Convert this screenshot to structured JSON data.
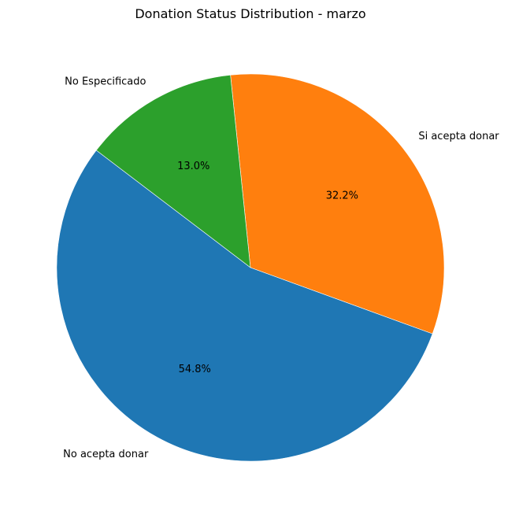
{
  "chart_data": {
    "type": "pie",
    "title": "Donation Status Distribution - marzo",
    "slices": [
      {
        "label": "Si acepta donar",
        "value": 32.2,
        "pct_label": "32.2%",
        "color": "#ff7f0e"
      },
      {
        "label": "No Especificado",
        "value": 13.0,
        "pct_label": "13.0%",
        "color": "#2ca02c"
      },
      {
        "label": "No acepta donar",
        "value": 54.8,
        "pct_label": "54.8%",
        "color": "#1f77b4"
      }
    ],
    "wedge_edge_color": "#ffffff",
    "counterclock": true,
    "legend": "none"
  }
}
